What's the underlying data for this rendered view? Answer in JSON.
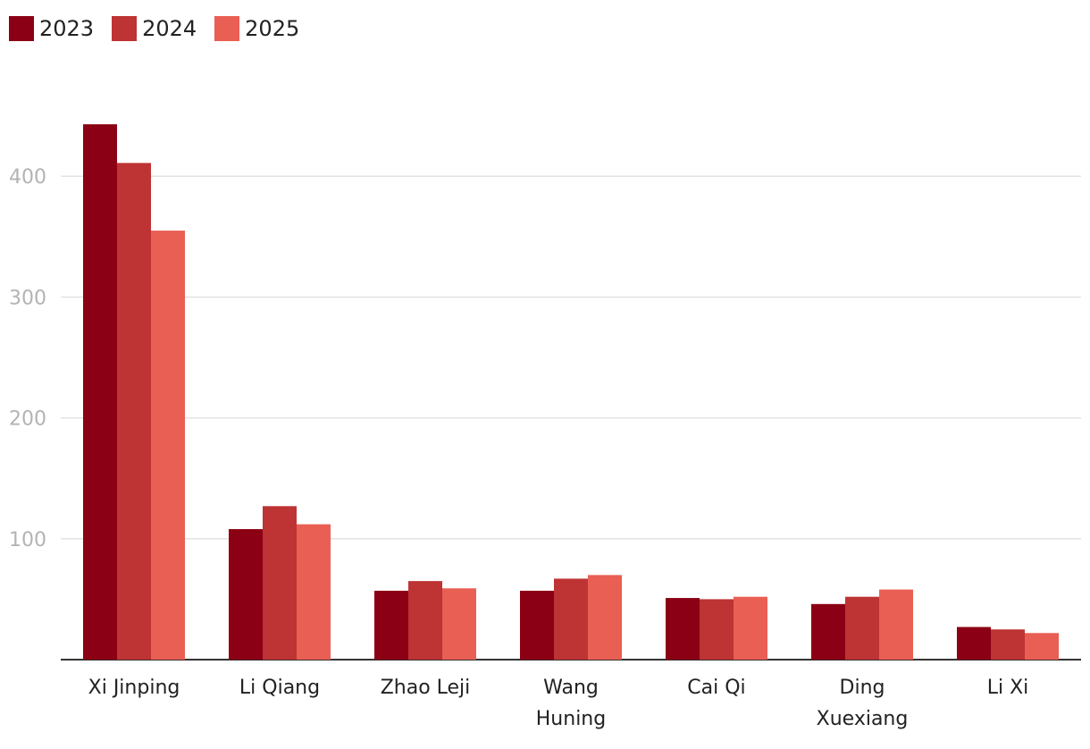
{
  "chart_data": {
    "type": "bar",
    "title": "",
    "xlabel": "",
    "ylabel": "",
    "ylim": [
      0,
      460
    ],
    "yticks": [
      100,
      200,
      300,
      400
    ],
    "grid": true,
    "legend_position": "top-left",
    "categories": [
      [
        "Xi Jinping"
      ],
      [
        "Li Qiang"
      ],
      [
        "Zhao Leji"
      ],
      [
        "Wang",
        "Huning"
      ],
      [
        "Cai Qi"
      ],
      [
        "Ding",
        "Xuexiang"
      ],
      [
        "Li Xi"
      ]
    ],
    "series": [
      {
        "name": "2023",
        "color": "#8b0014",
        "values": [
          443,
          108,
          57,
          57,
          51,
          46,
          27
        ]
      },
      {
        "name": "2024",
        "color": "#be3333",
        "values": [
          411,
          127,
          65,
          67,
          50,
          52,
          25
        ]
      },
      {
        "name": "2025",
        "color": "#e95f53",
        "values": [
          355,
          112,
          59,
          70,
          52,
          58,
          22
        ]
      }
    ]
  }
}
